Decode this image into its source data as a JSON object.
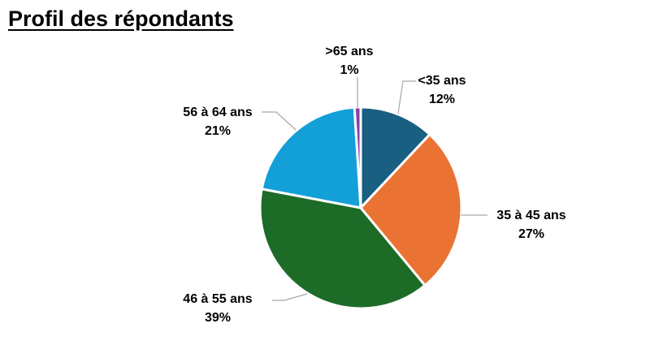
{
  "title": "Profil des répondants",
  "chart_data": {
    "type": "pie",
    "title": "Profil des répondants",
    "slices": [
      {
        "label": "<35 ans",
        "value": 12,
        "display": "12%",
        "color": "#185F82"
      },
      {
        "label": "35 à 45 ans",
        "value": 27,
        "display": "27%",
        "color": "#EA7233"
      },
      {
        "label": "46 à 55 ans",
        "value": 39,
        "display": "39%",
        "color": "#1C6B27"
      },
      {
        "label": "56 à 64 ans",
        "value": 21,
        "display": "21%",
        "color": "#139FD8"
      },
      {
        "label": ">65 ans",
        "value": 1,
        "display": "1%",
        "color": "#8B3FA6"
      }
    ],
    "legend": "none",
    "data_labels": "outside with leader lines"
  }
}
